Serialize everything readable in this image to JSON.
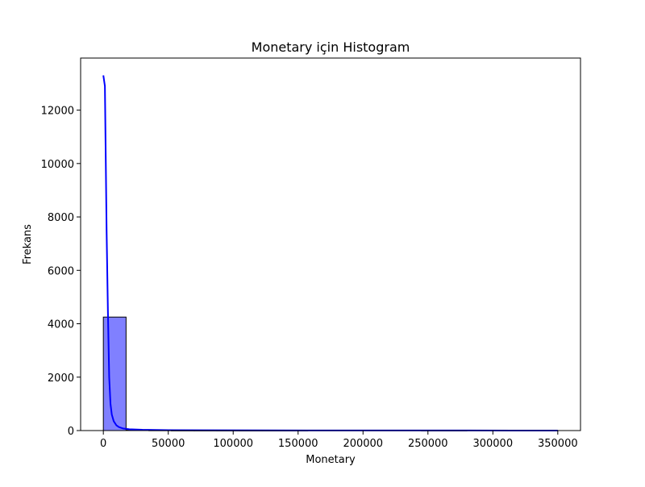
{
  "chart_data": {
    "type": "histogram",
    "title": "Monetary için Histogram",
    "xlabel": "Monetary",
    "ylabel": "Frekans",
    "xlim": [
      -17500,
      367500
    ],
    "ylim": [
      0,
      13950
    ],
    "xticks": [
      0,
      50000,
      100000,
      150000,
      200000,
      250000,
      300000,
      350000
    ],
    "xtick_labels": [
      "0",
      "50000",
      "100000",
      "150000",
      "200000",
      "250000",
      "300000",
      "350000"
    ],
    "yticks": [
      0,
      2000,
      4000,
      6000,
      8000,
      10000,
      12000
    ],
    "ytick_labels": [
      "0",
      "2000",
      "4000",
      "6000",
      "8000",
      "10000",
      "12000"
    ],
    "grid": false,
    "bars": [
      {
        "x0": 0,
        "x1": 17500,
        "count": 4250
      },
      {
        "x0": 17500,
        "x1": 35000,
        "count": 30
      },
      {
        "x0": 35000,
        "x1": 52500,
        "count": 10
      },
      {
        "x0": 52500,
        "x1": 70000,
        "count": 4
      },
      {
        "x0": 70000,
        "x1": 87500,
        "count": 3
      },
      {
        "x0": 87500,
        "x1": 105000,
        "count": 2
      },
      {
        "x0": 105000,
        "x1": 122500,
        "count": 1
      },
      {
        "x0": 122500,
        "x1": 140000,
        "count": 1
      },
      {
        "x0": 140000,
        "x1": 157500,
        "count": 1
      },
      {
        "x0": 157500,
        "x1": 175000,
        "count": 0
      },
      {
        "x0": 175000,
        "x1": 192500,
        "count": 0
      },
      {
        "x0": 192500,
        "x1": 210000,
        "count": 0
      },
      {
        "x0": 210000,
        "x1": 227500,
        "count": 0
      },
      {
        "x0": 227500,
        "x1": 245000,
        "count": 0
      },
      {
        "x0": 245000,
        "x1": 262500,
        "count": 1
      },
      {
        "x0": 262500,
        "x1": 280000,
        "count": 1
      },
      {
        "x0": 280000,
        "x1": 297500,
        "count": 0
      },
      {
        "x0": 297500,
        "x1": 315000,
        "count": 0
      },
      {
        "x0": 315000,
        "x1": 332500,
        "count": 0
      },
      {
        "x0": 332500,
        "x1": 350000,
        "count": 1
      }
    ],
    "kde": {
      "x": [
        0,
        1200,
        2500,
        3500,
        4500,
        5500,
        6500,
        8000,
        10000,
        12000,
        15000,
        20000,
        30000,
        50000,
        80000,
        120000,
        200000,
        280000,
        350000
      ],
      "y": [
        13300,
        12900,
        7500,
        4500,
        2000,
        1000,
        600,
        350,
        200,
        130,
        80,
        50,
        30,
        15,
        10,
        6,
        3,
        2,
        1
      ]
    },
    "colors": {
      "bar_fill": "#8080ff",
      "bar_edge": "#000000",
      "kde_line": "#0000ff",
      "axes": "#000000"
    }
  }
}
